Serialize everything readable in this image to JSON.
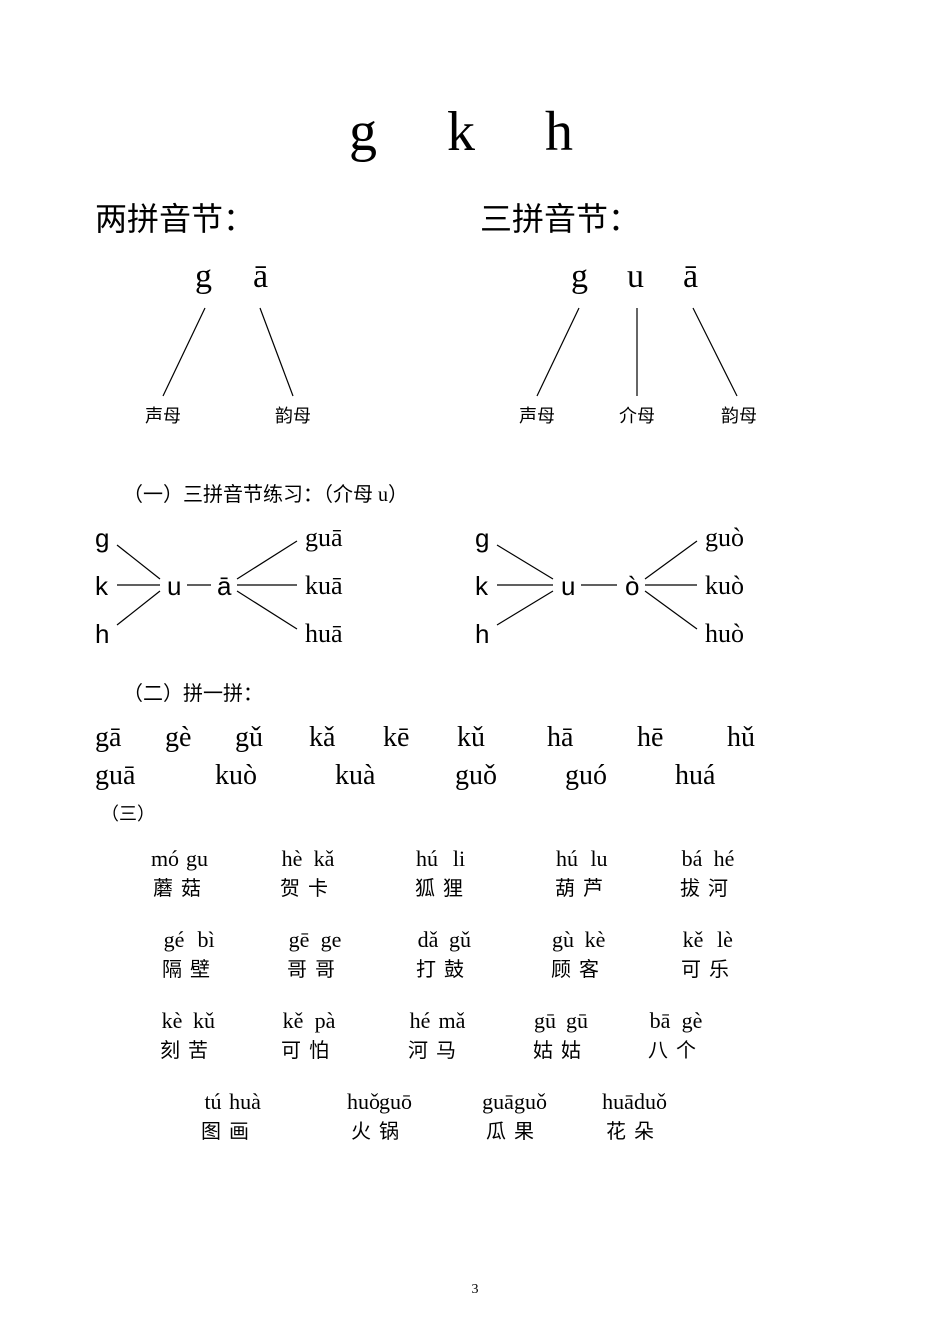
{
  "title": "g k h",
  "sub_left": "两拼音节：",
  "sub_right": "三拼音节：",
  "diag2": {
    "top1": "g",
    "top2": "ā",
    "bot1": "声母",
    "bot2": "韵母"
  },
  "diag3": {
    "top1": "g",
    "top2": "u",
    "top3": "ā",
    "bot1": "声母",
    "bot2": "介母",
    "bot3": "韵母"
  },
  "sec1": "（一）三拼音节练习：（介母 u）",
  "sec2": "（二）拼一拼：",
  "sec3": "（三）",
  "combo_left": {
    "c1": "g",
    "c2": "k",
    "c3": "h",
    "mid1": "u",
    "mid2": "ā",
    "o1": "guā",
    "o2": "kuā",
    "o3": "huā"
  },
  "combo_right": {
    "c1": "g",
    "c2": "k",
    "c3": "h",
    "mid1": "u",
    "mid2": "ò",
    "o1": "guò",
    "o2": "kuò",
    "o3": "huò"
  },
  "row1": [
    "gā",
    "gè",
    "gǔ",
    "kǎ",
    "kē",
    "kǔ",
    "hā",
    "hē",
    "hǔ"
  ],
  "row2": [
    "guā",
    "kuò",
    "kuà",
    "guǒ",
    "guó",
    "huá"
  ],
  "words": [
    [
      {
        "py": [
          "mó",
          "gu"
        ],
        "hz": "蘑菇"
      },
      {
        "py": [
          "hè",
          "kǎ"
        ],
        "hz": "贺卡"
      },
      {
        "py": [
          "hú",
          "li"
        ],
        "hz": "狐狸"
      },
      {
        "py": [
          "hú",
          "lu"
        ],
        "hz": "葫芦"
      },
      {
        "py": [
          "bá",
          "hé"
        ],
        "hz": "拔河"
      }
    ],
    [
      {
        "py": [
          "gé",
          "bì"
        ],
        "hz": "隔壁"
      },
      {
        "py": [
          "gē",
          "ge"
        ],
        "hz": "哥哥"
      },
      {
        "py": [
          "dǎ",
          "gǔ"
        ],
        "hz": "打鼓"
      },
      {
        "py": [
          "gù",
          "kè"
        ],
        "hz": "顾客"
      },
      {
        "py": [
          "kě",
          "lè"
        ],
        "hz": "可乐"
      }
    ],
    [
      {
        "py": [
          "kè",
          "kǔ"
        ],
        "hz": "刻苦"
      },
      {
        "py": [
          "kě",
          "pà"
        ],
        "hz": "可怕"
      },
      {
        "py": [
          "hé",
          "mǎ"
        ],
        "hz": "河马"
      },
      {
        "py": [
          "gū",
          "gū"
        ],
        "hz": "姑姑"
      },
      {
        "py": [
          "bā",
          "gè"
        ],
        "hz": "八个"
      }
    ],
    [
      {
        "py": [
          "tú",
          "huà"
        ],
        "hz": "图画"
      },
      {
        "py": [
          "huǒ",
          "guō"
        ],
        "hz": "火锅"
      },
      {
        "py": [
          "guā",
          "guǒ"
        ],
        "hz": "瓜果"
      },
      {
        "py": [
          "huā",
          "duǒ"
        ],
        "hz": "花朵"
      }
    ]
  ],
  "row1_widths": [
    70,
    70,
    74,
    74,
    74,
    90,
    90,
    90,
    50
  ],
  "row2_widths": [
    120,
    120,
    120,
    110,
    110,
    90
  ],
  "word_gaps": [
    [
      24,
      124,
      130,
      140,
      140,
      110
    ],
    [
      34,
      122,
      128,
      130,
      140,
      120
    ],
    [
      34,
      118,
      124,
      130,
      120,
      110
    ],
    [
      54,
      160,
      140,
      130,
      110
    ]
  ],
  "pagenum": "3"
}
